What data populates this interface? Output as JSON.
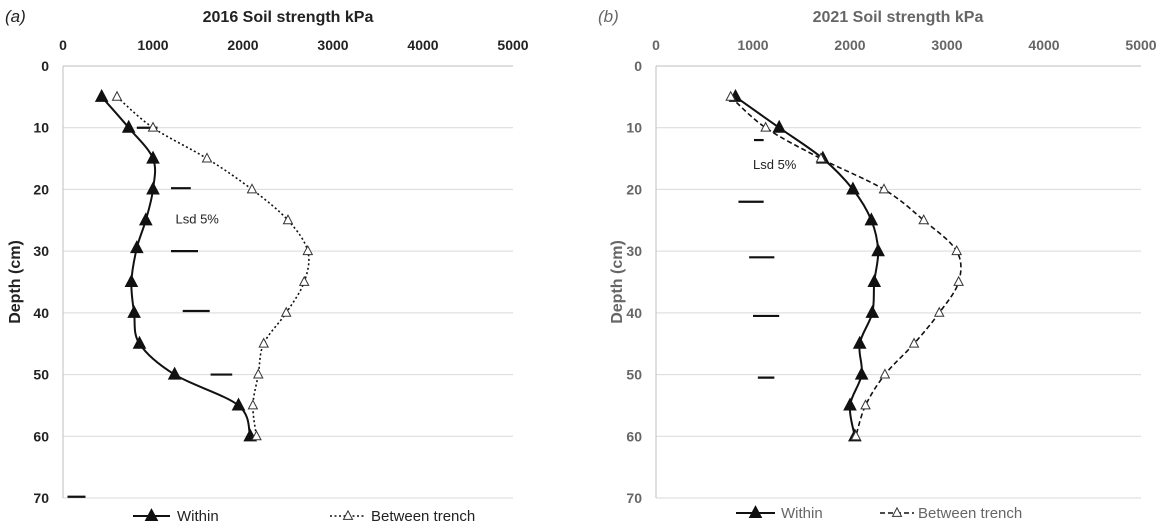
{
  "chart_data": [
    {
      "type": "line",
      "panel_label": "(a)",
      "title": "2016 Soil strength kPa",
      "ylabel": "Depth (cm)",
      "xlim": [
        0,
        5000
      ],
      "ylim": [
        0,
        70
      ],
      "y_inverted": true,
      "x_axis_position": "top",
      "x_ticks": [
        "0",
        "1000",
        "2000",
        "3000",
        "4000",
        "5000"
      ],
      "y_ticks": [
        "0",
        "10",
        "20",
        "30",
        "40",
        "50",
        "60",
        "70"
      ],
      "grid": "horizontal",
      "legend_position": "bottom",
      "series": [
        {
          "name": "Within",
          "style": "solid",
          "marker": "filled-triangle",
          "points": [
            [
              430,
              5
            ],
            [
              730,
              10
            ],
            [
              1000,
              15
            ],
            [
              1000,
              20
            ],
            [
              920,
              25
            ],
            [
              820,
              29.5
            ],
            [
              760,
              35
            ],
            [
              790,
              40
            ],
            [
              850,
              45
            ],
            [
              1240,
              50
            ],
            [
              1950,
              55
            ],
            [
              2080,
              60
            ]
          ]
        },
        {
          "name": "Between trench",
          "style": "dotted",
          "marker": "open-triangle",
          "points": [
            [
              600,
              5
            ],
            [
              1000,
              10
            ],
            [
              1600,
              15
            ],
            [
              2100,
              20
            ],
            [
              2500,
              25
            ],
            [
              2720,
              30
            ],
            [
              2680,
              35
            ],
            [
              2480,
              40
            ],
            [
              2230,
              45
            ],
            [
              2170,
              50
            ],
            [
              2110,
              55
            ],
            [
              2150,
              60
            ]
          ]
        }
      ],
      "annotations": [
        {
          "text": "Lsd 5%",
          "x": 1250,
          "y": 25.5
        }
      ],
      "lsd_bars": [
        {
          "x1": 820,
          "x2": 1050,
          "y": 10
        },
        {
          "x1": 1200,
          "x2": 1420,
          "y": 19.8
        },
        {
          "x1": 1200,
          "x2": 1500,
          "y": 30
        },
        {
          "x1": 1330,
          "x2": 1630,
          "y": 39.7
        },
        {
          "x1": 1640,
          "x2": 1880,
          "y": 50
        },
        {
          "x1": 50,
          "x2": 250,
          "y": 69.8
        }
      ]
    },
    {
      "type": "line",
      "panel_label": "(b)",
      "title": "2021 Soil strength kPa",
      "ylabel": "Depth (cm)",
      "xlim": [
        0,
        5000
      ],
      "ylim": [
        0,
        70
      ],
      "y_inverted": true,
      "x_axis_position": "top",
      "x_ticks": [
        "0",
        "1000",
        "2000",
        "3000",
        "4000",
        "5000"
      ],
      "y_ticks": [
        "0",
        "10",
        "20",
        "30",
        "40",
        "50",
        "60",
        "70"
      ],
      "grid": "horizontal",
      "legend_position": "bottom",
      "series": [
        {
          "name": "Within",
          "style": "solid",
          "marker": "filled-triangle",
          "points": [
            [
              820,
              5
            ],
            [
              1270,
              10
            ],
            [
              1720,
              15
            ],
            [
              2030,
              20
            ],
            [
              2220,
              25
            ],
            [
              2290,
              30
            ],
            [
              2250,
              35
            ],
            [
              2230,
              40
            ],
            [
              2100,
              45
            ],
            [
              2120,
              50
            ],
            [
              2000,
              55
            ],
            [
              2050,
              60
            ]
          ]
        },
        {
          "name": "Between trench",
          "style": "dashed",
          "marker": "open-triangle",
          "points": [
            [
              770,
              5
            ],
            [
              1130,
              10
            ],
            [
              1700,
              15
            ],
            [
              2350,
              20
            ],
            [
              2760,
              25
            ],
            [
              3100,
              30
            ],
            [
              3120,
              35
            ],
            [
              2920,
              40
            ],
            [
              2660,
              45
            ],
            [
              2360,
              50
            ],
            [
              2160,
              55
            ],
            [
              2060,
              60
            ]
          ]
        }
      ],
      "annotations": [
        {
          "text": "Lsd 5%",
          "x": 1000,
          "y": 16.7
        }
      ],
      "lsd_bars": [
        {
          "x1": 1010,
          "x2": 1110,
          "y": 12
        },
        {
          "x1": 850,
          "x2": 1110,
          "y": 22
        },
        {
          "x1": 960,
          "x2": 1220,
          "y": 31
        },
        {
          "x1": 1000,
          "x2": 1270,
          "y": 40.5
        },
        {
          "x1": 1050,
          "x2": 1220,
          "y": 50.5
        }
      ]
    }
  ]
}
